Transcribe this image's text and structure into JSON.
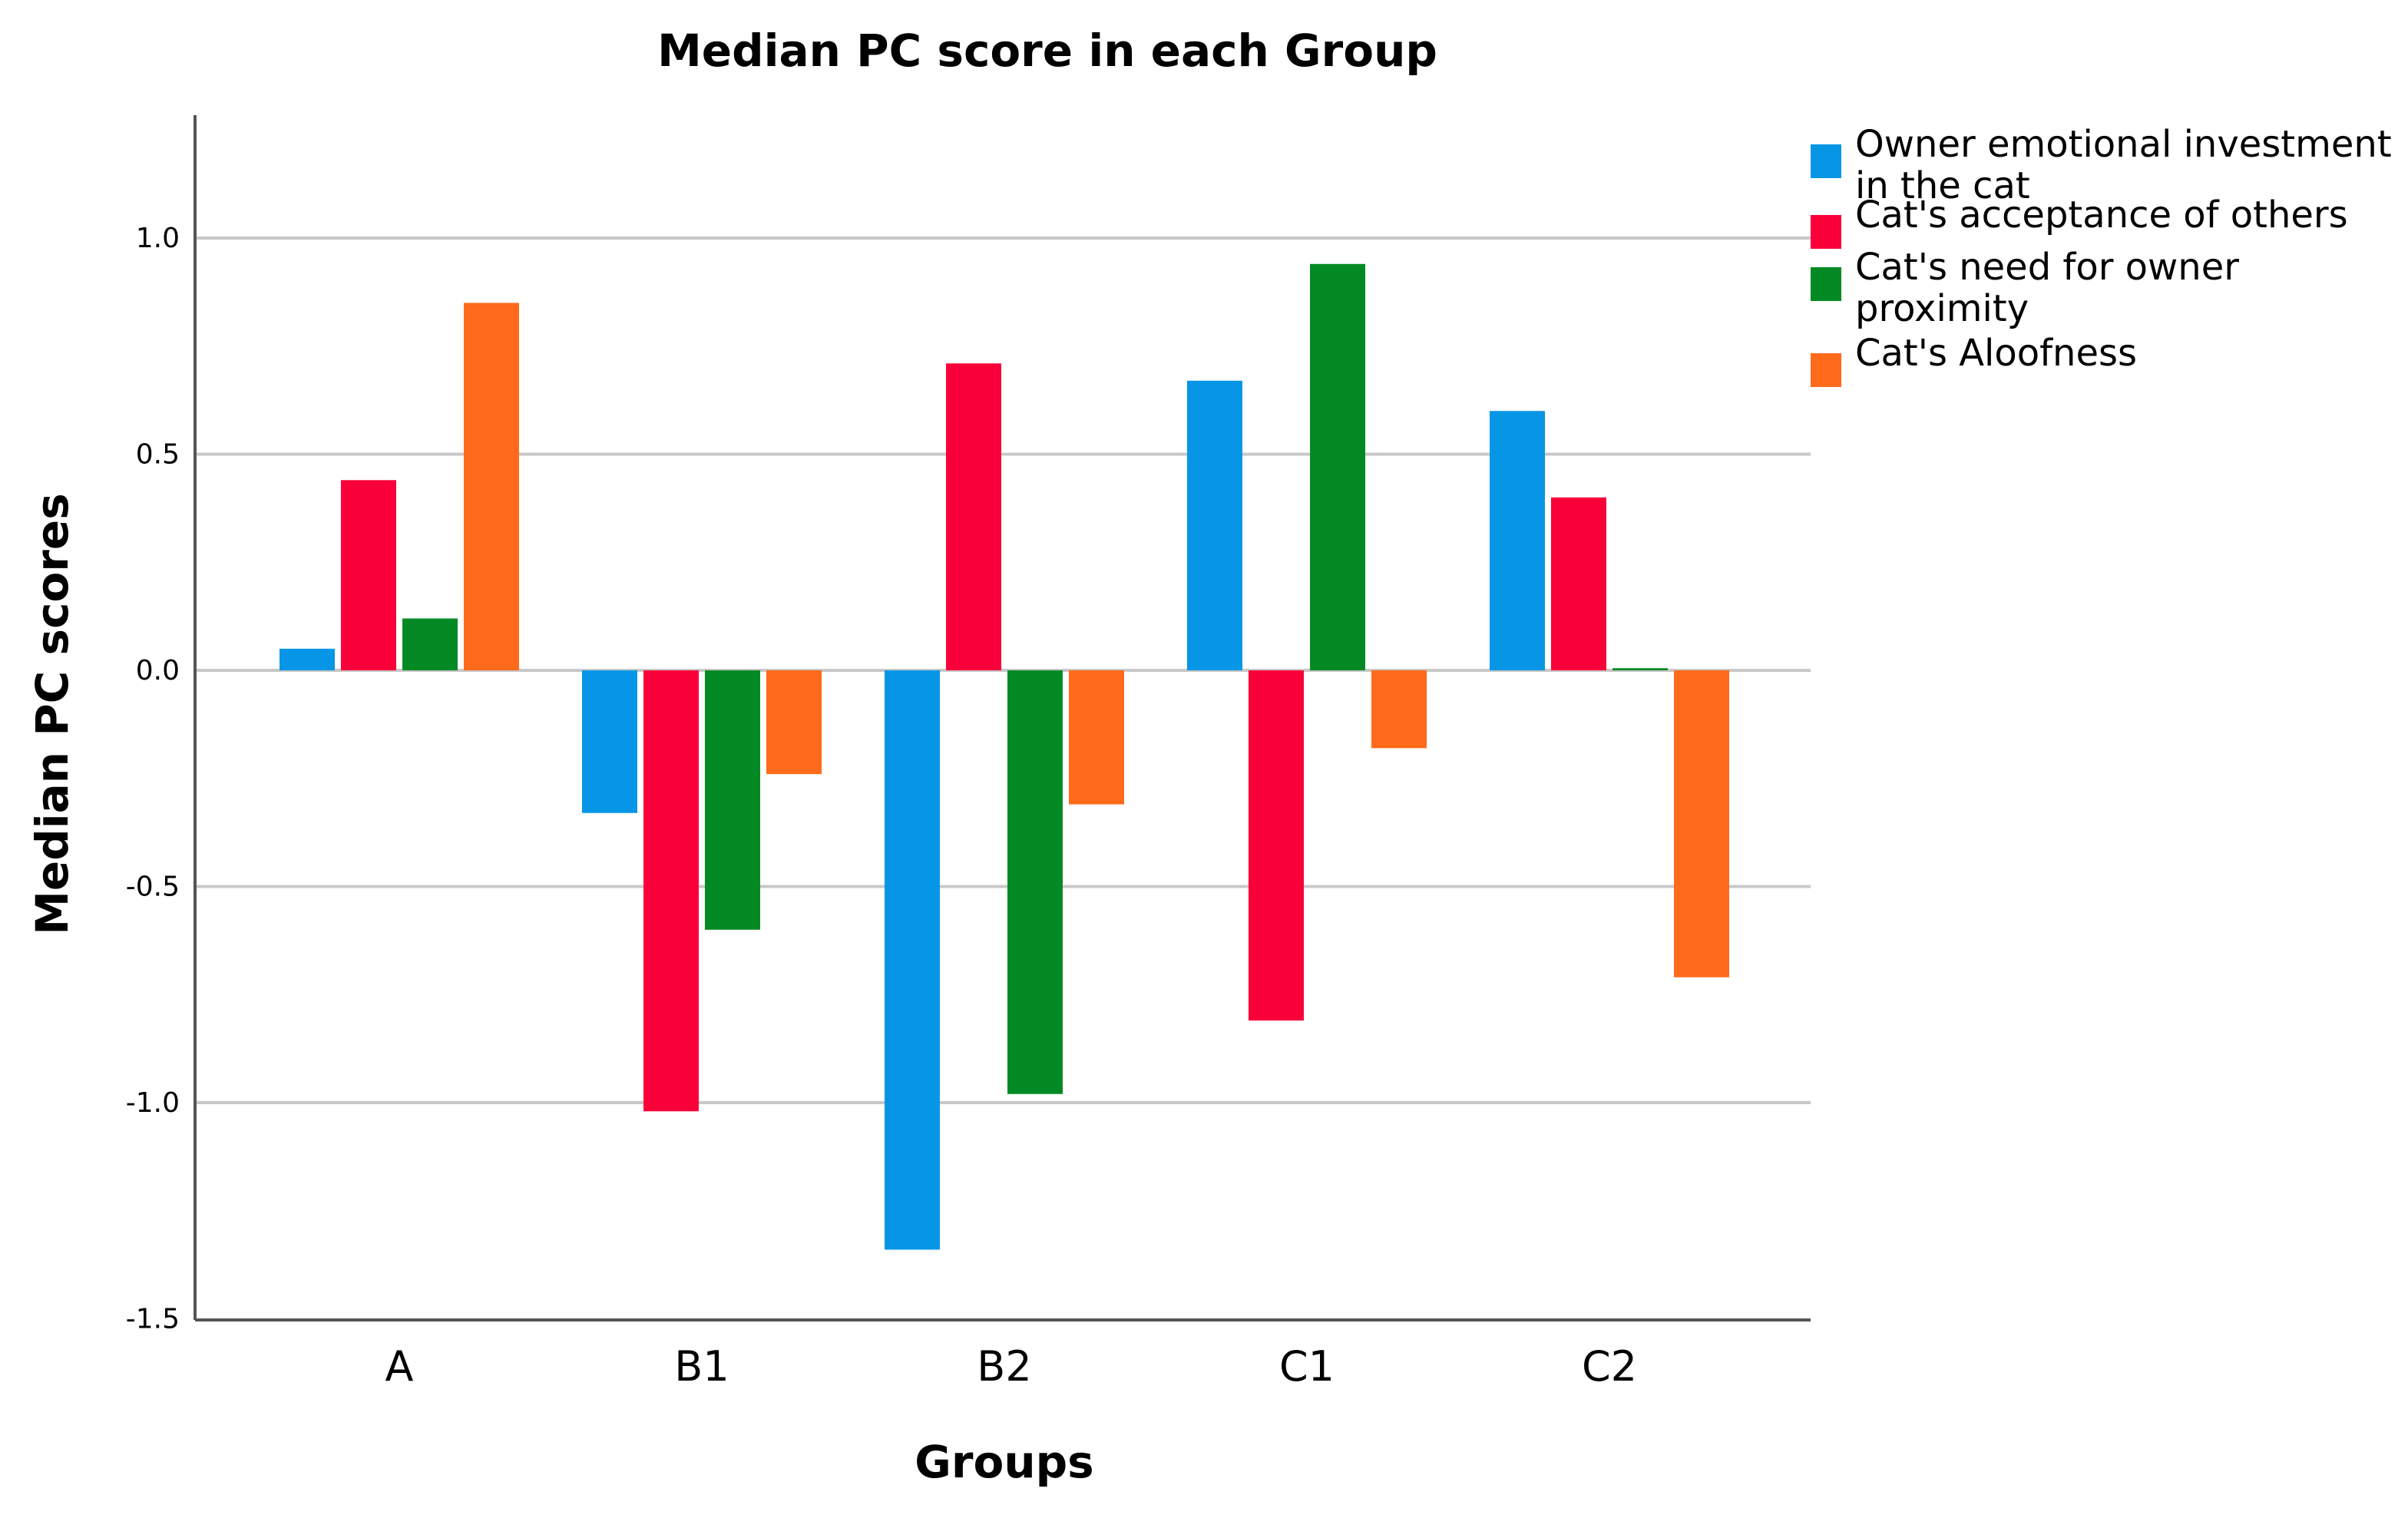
{
  "chart_data": {
    "type": "bar",
    "title": "Median PC score in each Group",
    "xlabel": "Groups",
    "ylabel": "Median PC scores",
    "ylim": [
      -1.5,
      1.3
    ],
    "yticks": [
      1.0,
      0.5,
      0.0,
      -0.5,
      -1.0,
      -1.5
    ],
    "ytick_labels": [
      "1.0",
      "0.5",
      "0.0",
      "-0.5",
      "-1.0",
      "-1.5"
    ],
    "grid": true,
    "legend_position": "top-right",
    "categories": [
      "A",
      "B1",
      "B2",
      "C1",
      "C2"
    ],
    "series": [
      {
        "name": "Owner emotional investment in the cat",
        "legend_lines": [
          "Owner emotional investment",
          "in the cat"
        ],
        "color": "#0796e6",
        "values": [
          0.05,
          -0.33,
          -1.34,
          0.67,
          0.6
        ]
      },
      {
        "name": "Cat's acceptance of others",
        "legend_lines": [
          "Cat's acceptance of others"
        ],
        "color": "#f9003a",
        "values": [
          0.44,
          -1.02,
          0.71,
          -0.81,
          0.4
        ]
      },
      {
        "name": "Cat's need for owner proximity",
        "legend_lines": [
          "Cat's need for owner",
          "proximity"
        ],
        "color": "#038a24",
        "values": [
          0.12,
          -0.6,
          -0.98,
          0.94,
          0.005
        ]
      },
      {
        "name": "Cat's Aloofness",
        "legend_lines": [
          "Cat's Aloofness"
        ],
        "color": "#ff6a1b",
        "values": [
          0.85,
          -0.24,
          -0.31,
          -0.18,
          -0.71
        ]
      }
    ]
  }
}
